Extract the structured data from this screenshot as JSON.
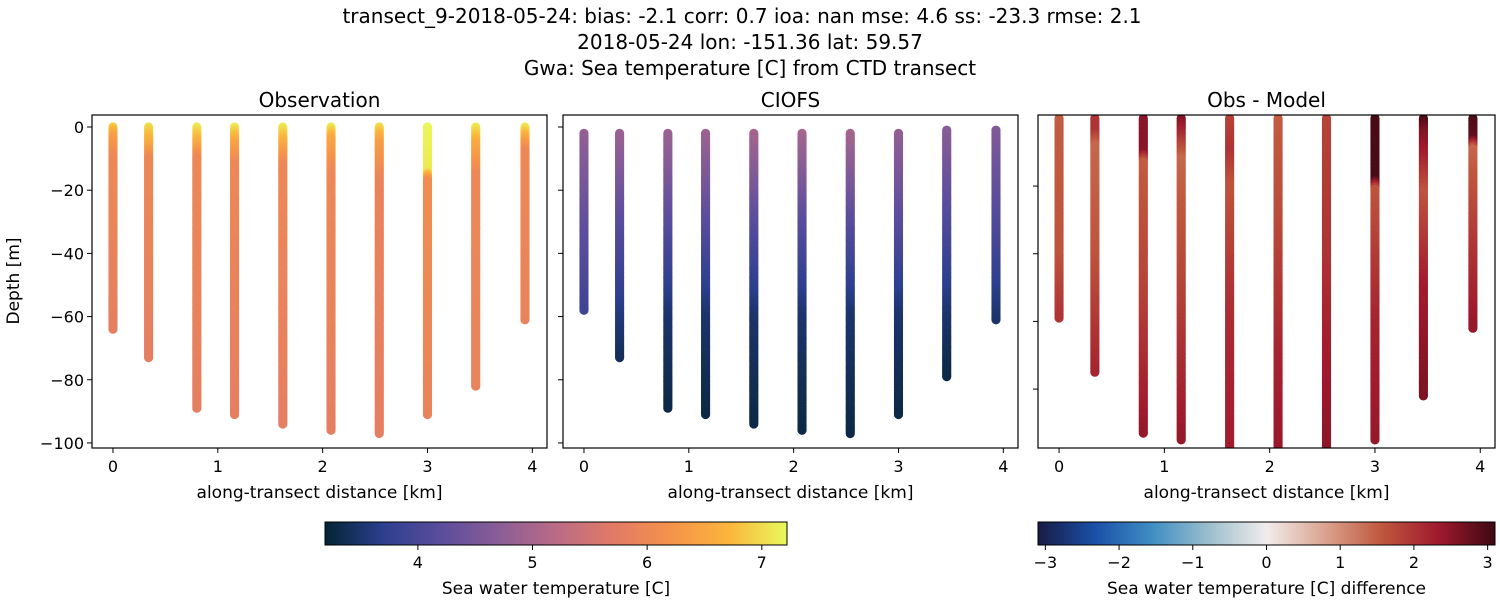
{
  "title_lines": [
    "transect_9-2018-05-24: bias: -2.1  corr: 0.7  ioa: nan  mse: 4.6  ss: -23.3  rmse: 2.1",
    "2018-05-24 lon: -151.36 lat: 59.57",
    "Gwa: Sea temperature [C] from CTD transect"
  ],
  "chart_data": [
    {
      "type": "scatter",
      "title": "Observation",
      "xlabel": "along-transect distance [km]",
      "ylabel": "Depth [m]",
      "xlim": [
        -0.2,
        4.14
      ],
      "ylim": [
        -101.6,
        3.8
      ],
      "xticks": [
        0,
        1,
        2,
        3,
        4
      ],
      "yticks": [
        0,
        -20,
        -40,
        -60,
        -80,
        -100
      ],
      "colormap": "thermal",
      "stations": [
        {
          "x": 0.0,
          "profile": [
            [
              0,
              6.9
            ],
            [
              3,
              6.4
            ],
            [
              10,
              6.0
            ],
            [
              64,
              5.8
            ]
          ]
        },
        {
          "x": 0.34,
          "profile": [
            [
              0,
              7.0
            ],
            [
              6,
              6.5
            ],
            [
              10,
              6.0
            ],
            [
              73,
              5.8
            ]
          ]
        },
        {
          "x": 0.8,
          "profile": [
            [
              0,
              7.1
            ],
            [
              5,
              6.6
            ],
            [
              10,
              6.0
            ],
            [
              89,
              5.8
            ]
          ]
        },
        {
          "x": 1.16,
          "profile": [
            [
              0,
              7.1
            ],
            [
              5,
              6.5
            ],
            [
              12,
              6.0
            ],
            [
              91,
              5.8
            ]
          ]
        },
        {
          "x": 1.62,
          "profile": [
            [
              0,
              7.1
            ],
            [
              5,
              6.6
            ],
            [
              12,
              6.0
            ],
            [
              94,
              5.8
            ]
          ]
        },
        {
          "x": 2.08,
          "profile": [
            [
              0,
              7.1
            ],
            [
              4,
              6.5
            ],
            [
              15,
              6.0
            ],
            [
              96,
              5.8
            ]
          ]
        },
        {
          "x": 2.54,
          "profile": [
            [
              0,
              7.0
            ],
            [
              5,
              6.4
            ],
            [
              18,
              5.9
            ],
            [
              97,
              5.8
            ]
          ]
        },
        {
          "x": 3.0,
          "profile": [
            [
              0,
              7.2
            ],
            [
              14,
              7.1
            ],
            [
              17,
              6.1
            ],
            [
              91,
              5.9
            ]
          ]
        },
        {
          "x": 3.46,
          "profile": [
            [
              0,
              7.1
            ],
            [
              5,
              6.6
            ],
            [
              15,
              6.0
            ],
            [
              82,
              5.9
            ]
          ]
        },
        {
          "x": 3.93,
          "profile": [
            [
              0,
              7.1
            ],
            [
              5,
              6.3
            ],
            [
              8,
              6.0
            ],
            [
              61,
              5.9
            ]
          ]
        }
      ]
    },
    {
      "type": "scatter",
      "title": "CIOFS",
      "xlabel": "along-transect distance [km]",
      "xlim": [
        -0.2,
        4.14
      ],
      "ylim": [
        -101.6,
        3.8
      ],
      "xticks": [
        0,
        1,
        2,
        3,
        4
      ],
      "colormap": "thermal",
      "stations": [
        {
          "x": 0.0,
          "profile": [
            [
              2,
              4.8
            ],
            [
              30,
              4.3
            ],
            [
              58,
              3.9
            ]
          ]
        },
        {
          "x": 0.34,
          "profile": [
            [
              2,
              4.9
            ],
            [
              30,
              4.2
            ],
            [
              60,
              3.6
            ],
            [
              73,
              3.4
            ]
          ]
        },
        {
          "x": 0.8,
          "profile": [
            [
              2,
              4.9
            ],
            [
              30,
              4.2
            ],
            [
              60,
              3.5
            ],
            [
              89,
              3.3
            ]
          ]
        },
        {
          "x": 1.16,
          "profile": [
            [
              2,
              4.9
            ],
            [
              30,
              4.2
            ],
            [
              60,
              3.5
            ],
            [
              91,
              3.3
            ]
          ]
        },
        {
          "x": 1.62,
          "profile": [
            [
              2,
              5.0
            ],
            [
              30,
              4.2
            ],
            [
              60,
              3.5
            ],
            [
              94,
              3.3
            ]
          ]
        },
        {
          "x": 2.08,
          "profile": [
            [
              2,
              5.0
            ],
            [
              30,
              4.2
            ],
            [
              60,
              3.5
            ],
            [
              96,
              3.3
            ]
          ]
        },
        {
          "x": 2.54,
          "profile": [
            [
              2,
              5.0
            ],
            [
              30,
              4.2
            ],
            [
              60,
              3.5
            ],
            [
              97,
              3.3
            ]
          ]
        },
        {
          "x": 3.0,
          "profile": [
            [
              2,
              4.8
            ],
            [
              30,
              4.2
            ],
            [
              60,
              3.5
            ],
            [
              91,
              3.3
            ]
          ]
        },
        {
          "x": 3.46,
          "profile": [
            [
              1,
              4.7
            ],
            [
              30,
              4.1
            ],
            [
              60,
              3.5
            ],
            [
              79,
              3.3
            ]
          ]
        },
        {
          "x": 3.93,
          "profile": [
            [
              1,
              4.6
            ],
            [
              30,
              4.1
            ],
            [
              61,
              3.5
            ]
          ]
        }
      ]
    },
    {
      "type": "scatter",
      "title": "Obs - Model",
      "xlabel": "along-transect distance [km]",
      "xlim": [
        -0.2,
        4.14
      ],
      "ylim": [
        -97.4,
        1.0
      ],
      "xticks": [
        0,
        1,
        2,
        3,
        4
      ],
      "colormap": "balance",
      "stations": [
        {
          "x": 0.0,
          "profile": [
            [
              0,
              1.5
            ],
            [
              40,
              1.6
            ],
            [
              59,
              2.0
            ]
          ]
        },
        {
          "x": 0.34,
          "profile": [
            [
              0,
              2.0
            ],
            [
              4,
              2.0
            ],
            [
              8,
              1.4
            ],
            [
              40,
              1.6
            ],
            [
              75,
              2.2
            ]
          ]
        },
        {
          "x": 0.8,
          "profile": [
            [
              0,
              2.5
            ],
            [
              10,
              2.5
            ],
            [
              13,
              1.5
            ],
            [
              50,
              1.8
            ],
            [
              93,
              2.4
            ]
          ]
        },
        {
          "x": 1.16,
          "profile": [
            [
              0,
              2.6
            ],
            [
              6,
              2.0
            ],
            [
              12,
              1.4
            ],
            [
              50,
              1.8
            ],
            [
              95,
              2.4
            ]
          ]
        },
        {
          "x": 1.62,
          "profile": [
            [
              0,
              1.8
            ],
            [
              10,
              2.0
            ],
            [
              20,
              1.6
            ],
            [
              60,
              2.1
            ],
            [
              98,
              2.3
            ]
          ]
        },
        {
          "x": 2.08,
          "profile": [
            [
              0,
              1.5
            ],
            [
              30,
              1.7
            ],
            [
              70,
              2.2
            ],
            [
              101,
              2.4
            ]
          ]
        },
        {
          "x": 2.54,
          "profile": [
            [
              0,
              1.8
            ],
            [
              40,
              2.0
            ],
            [
              70,
              2.3
            ],
            [
              101,
              2.5
            ]
          ]
        },
        {
          "x": 3.0,
          "profile": [
            [
              0,
              3.0
            ],
            [
              18,
              3.0
            ],
            [
              21,
              1.6
            ],
            [
              60,
              2.2
            ],
            [
              95,
              2.4
            ]
          ]
        },
        {
          "x": 3.46,
          "profile": [
            [
              0,
              3.0
            ],
            [
              4,
              2.6
            ],
            [
              12,
              2.2
            ],
            [
              22,
              1.6
            ],
            [
              50,
              2.3
            ],
            [
              82,
              2.6
            ]
          ]
        },
        {
          "x": 3.93,
          "profile": [
            [
              0,
              3.0
            ],
            [
              6,
              2.8
            ],
            [
              9,
              1.4
            ],
            [
              40,
              2.0
            ],
            [
              62,
              2.4
            ]
          ]
        }
      ]
    }
  ],
  "colorbars": [
    {
      "label": "Sea water temperature [C]",
      "colormap": "thermal",
      "range": [
        3.19,
        7.22
      ],
      "ticks": [
        4,
        5,
        6,
        7
      ]
    },
    {
      "label": "Sea water temperature [C] difference",
      "colormap": "balance",
      "range": [
        -3.1,
        3.1
      ],
      "ticks": [
        -3,
        -2,
        -1,
        0,
        1,
        2,
        3
      ]
    }
  ],
  "colormaps": {
    "thermal": [
      "#042333",
      "#2c3f8e",
      "#5a4d9c",
      "#8a5d96",
      "#b96b86",
      "#e27a66",
      "#f5934a",
      "#fbb53c",
      "#e8fa5b"
    ],
    "balance": [
      "#181c43",
      "#1b4fa8",
      "#3f8ec3",
      "#9cbfcd",
      "#f1ecec",
      "#dba592",
      "#c0583e",
      "#a01a2e",
      "#3c0912"
    ]
  }
}
